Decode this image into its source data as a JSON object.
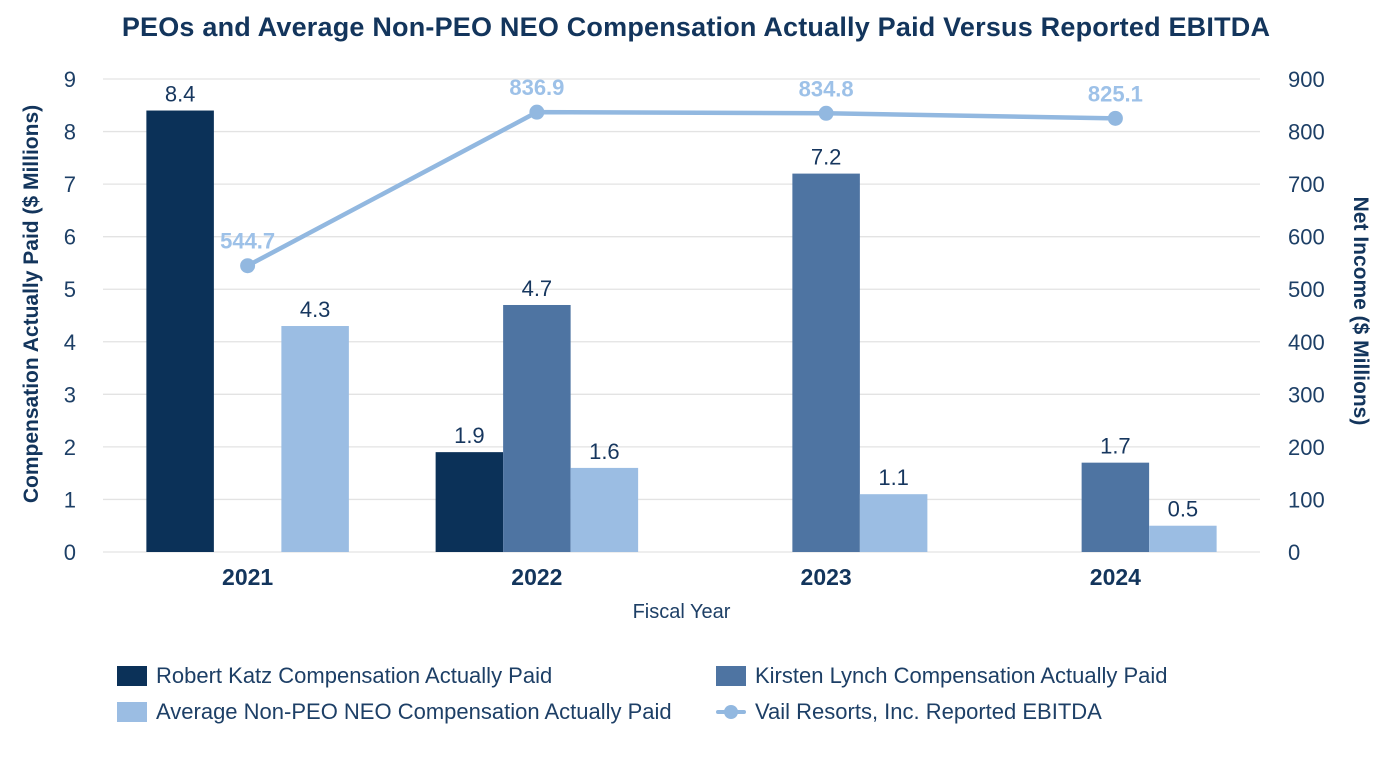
{
  "colors": {
    "background": "#ffffff",
    "grid": "#e3e3e3",
    "navy_text": "#13355c",
    "tick_text": "#1d3f66",
    "line_label": "#9dc1e8"
  },
  "chart_data": {
    "type": "bar",
    "subtype": "grouped-bar-with-line-combo",
    "title": "PEOs and Average Non-PEO NEO Compensation Actually Paid Versus Reported EBITDA",
    "xlabel": "Fiscal Year",
    "ylabel_left": "Compensation Actually Paid ($ Millions)",
    "ylabel_right": "Net Income ($ Millions)",
    "categories": [
      "2021",
      "2022",
      "2023",
      "2024"
    ],
    "series": [
      {
        "name": "Robert Katz Compensation Actually Paid",
        "type": "bar",
        "axis": "left",
        "color": "#0b3158",
        "values": [
          8.4,
          1.9,
          null,
          null
        ]
      },
      {
        "name": "Kirsten Lynch Compensation Actually Paid",
        "type": "bar",
        "axis": "left",
        "color": "#4e74a2",
        "values": [
          null,
          4.7,
          7.2,
          1.7
        ]
      },
      {
        "name": "Average Non-PEO NEO Compensation Actually Paid",
        "type": "bar",
        "axis": "left",
        "color": "#9bbde3",
        "values": [
          4.3,
          1.6,
          1.1,
          0.5
        ]
      },
      {
        "name": "Vail Resorts, Inc. Reported EBITDA",
        "type": "line",
        "axis": "right",
        "color": "#92b8e0",
        "values": [
          544.7,
          836.9,
          834.8,
          825.1
        ]
      }
    ],
    "ylim_left": [
      0,
      9
    ],
    "yticks_left": [
      0,
      1,
      2,
      3,
      4,
      5,
      6,
      7,
      8,
      9
    ],
    "ylim_right": [
      0,
      900
    ],
    "yticks_right": [
      0,
      100,
      200,
      300,
      400,
      500,
      600,
      700,
      800,
      900
    ],
    "grid": "horizontal",
    "legend_position": "bottom",
    "data_labels": "all points labeled with one decimal"
  }
}
